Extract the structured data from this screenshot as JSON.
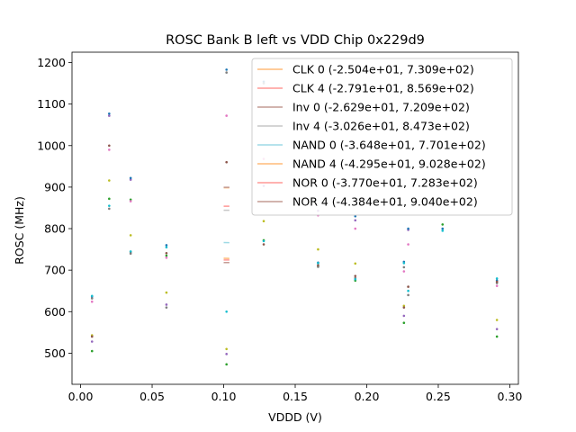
{
  "chart_data": {
    "type": "scatter",
    "title": "ROSC Bank B left vs VDD Chip 0x229d9",
    "xlabel": "VDDD (V)",
    "ylabel": "ROSC (MHz)",
    "xlim": [
      -0.006,
      0.306
    ],
    "ylim": [
      425,
      1225
    ],
    "xticks": [
      0.0,
      0.05,
      0.1,
      0.15,
      0.2,
      0.25,
      0.3
    ],
    "xtick_labels": [
      "0.00",
      "0.05",
      "0.10",
      "0.15",
      "0.20",
      "0.25",
      "0.30"
    ],
    "yticks": [
      500,
      600,
      700,
      800,
      900,
      1000,
      1100,
      1200
    ],
    "ytick_labels": [
      "500",
      "600",
      "700",
      "800",
      "900",
      "1000",
      "1100",
      "1200"
    ],
    "grid": false,
    "legend_position": "top-right",
    "fit_lines": [
      {
        "name": "CLK 0 (-2.504e+01, 7.309e+02)",
        "color": "#ffbb78",
        "slope": -25.04,
        "intercept": 730.9
      },
      {
        "name": "CLK 4 (-2.791e+01, 8.569e+02)",
        "color": "#ff9896",
        "slope": -27.91,
        "intercept": 856.9
      },
      {
        "name": "Inv 0 (-2.629e+01, 7.209e+02)",
        "color": "#c49c94",
        "slope": -26.29,
        "intercept": 720.9
      },
      {
        "name": "Inv 4 (-3.026e+01, 8.473e+02)",
        "color": "#c7c7c7",
        "slope": -30.26,
        "intercept": 847.3
      },
      {
        "name": "NAND 0 (-3.648e+01, 7.701e+02)",
        "color": "#9edae5",
        "slope": -36.48,
        "intercept": 770.1
      },
      {
        "name": "NAND 4 (-4.295e+01, 9.028e+02)",
        "color": "#ffbb78",
        "slope": -42.95,
        "intercept": 902.8
      },
      {
        "name": "NOR 0 (-3.770e+01, 7.283e+02)",
        "color": "#ff9896",
        "slope": -37.7,
        "intercept": 728.3
      },
      {
        "name": "NOR 4 (-4.384e+01, 9.040e+02)",
        "color": "#c49c94",
        "slope": -43.84,
        "intercept": 904.0
      }
    ],
    "series": [
      {
        "name": "green",
        "color": "#2ca02c",
        "x": [
          0.008,
          0.02,
          0.035,
          0.06,
          0.102,
          0.128,
          0.166,
          0.192,
          0.226,
          0.253,
          0.291
        ],
        "y": [
          505,
          872,
          870,
          735,
          473,
          772,
          709,
          675,
          573,
          810,
          540
        ]
      },
      {
        "name": "olive",
        "color": "#bcbd22",
        "x": [
          0.008,
          0.02,
          0.035,
          0.06,
          0.102,
          0.128,
          0.166,
          0.192,
          0.226,
          0.291
        ],
        "y": [
          543,
          916,
          784,
          646,
          510,
          818,
          750,
          716,
          614,
          580
        ]
      },
      {
        "name": "pink",
        "color": "#e377c2",
        "x": [
          0.008,
          0.02,
          0.035,
          0.06,
          0.102,
          0.128,
          0.166,
          0.192,
          0.226,
          0.229,
          0.291
        ],
        "y": [
          624,
          990,
          866,
          730,
          1072,
          968,
          832,
          800,
          697,
          762,
          662
        ]
      },
      {
        "name": "purple",
        "color": "#9467bd",
        "x": [
          0.008,
          0.02,
          0.035,
          0.06,
          0.102,
          0.128,
          0.166,
          0.192,
          0.226,
          0.229,
          0.291
        ],
        "y": [
          528,
          1072,
          918,
          617,
          498,
          903,
          843,
          820,
          590,
          797,
          558
        ]
      },
      {
        "name": "blue",
        "color": "#1f77b4",
        "x": [
          0.008,
          0.02,
          0.035,
          0.06,
          0.102,
          0.128,
          0.166,
          0.192,
          0.226,
          0.229,
          0.253,
          0.291
        ],
        "y": [
          636,
          1077,
          922,
          760,
          1183,
          1154,
          718,
          830,
          720,
          800,
          800,
          675
        ]
      },
      {
        "name": "gray",
        "color": "#7f7f7f",
        "x": [
          0.008,
          0.02,
          0.035,
          0.06,
          0.102,
          0.128,
          0.166,
          0.192,
          0.226,
          0.229,
          0.291
        ],
        "y": [
          632,
          848,
          740,
          610,
          1176,
          1150,
          708,
          681,
          707,
          640,
          669
        ]
      },
      {
        "name": "brown",
        "color": "#8c564b",
        "x": [
          0.008,
          0.02,
          0.035,
          0.06,
          0.102,
          0.128,
          0.166,
          0.192,
          0.226,
          0.229,
          0.291
        ],
        "y": [
          540,
          1000,
          744,
          741,
          960,
          762,
          712,
          686,
          610,
          660,
          672
        ]
      },
      {
        "name": "cyan",
        "color": "#17becf",
        "x": [
          0.008,
          0.02,
          0.035,
          0.06,
          0.102,
          0.128,
          0.166,
          0.192,
          0.226,
          0.229,
          0.253,
          0.291
        ],
        "y": [
          638,
          855,
          745,
          755,
          600,
          770,
          717,
          678,
          717,
          650,
          795,
          680
        ]
      }
    ]
  }
}
